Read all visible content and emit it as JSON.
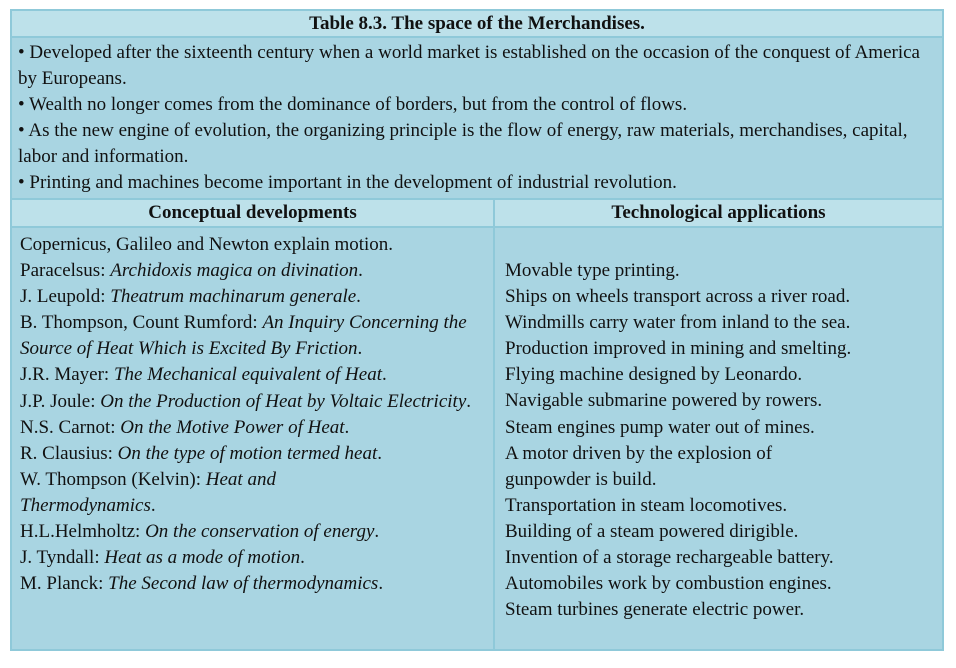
{
  "title": "Table 8.3. The space of the Merchandises.",
  "intro": [
    "• Developed after the sixteenth century when a world market is established on the occasion of the conquest of America by Europeans.",
    "• Wealth no longer comes from the dominance of borders, but from the control of flows.",
    "• As the new engine of evolution, the organizing principle is the flow of energy, raw materials, merchandises, capital, labor and information.",
    "• Printing and machines become important in the development of industrial revolution."
  ],
  "headers": {
    "left": "Conceptual developments",
    "right": "Technological applications"
  },
  "conceptual": [
    {
      "author": "Copernicus, Galileo and Newton explain motion.",
      "work": "",
      "end": ""
    },
    {
      "author": "Paracelsus: ",
      "work": "Archidoxis magica on divination",
      "end": "."
    },
    {
      "author": "J. Leupold: ",
      "work": "Theatrum machinarum generale",
      "end": "."
    },
    {
      "author": "B. Thompson, Count Rumford: ",
      "work": "An Inquiry Concerning the Source of Heat Which is Excited By Friction",
      "end": "."
    },
    {
      "author": "J.R. Mayer: ",
      "work": "The Mechanical equivalent of Heat",
      "end": "."
    },
    {
      "author": "J.P. Joule: ",
      "work": "On the Production of Heat by Voltaic Electricity",
      "end": "."
    },
    {
      "author": "N.S. Carnot: ",
      "work": "On the Motive Power of Heat",
      "end": "."
    },
    {
      "author": "R. Clausius: ",
      "work": "On the type of motion termed heat",
      "end": "."
    },
    {
      "author": "W. Thompson (Kelvin): ",
      "work": "Heat and Thermodynamics",
      "end": "."
    },
    {
      "author": "H.L.Helmholtz: ",
      "work": "On the conservation of energy",
      "end": "."
    },
    {
      "author": "J. Tyndall: ",
      "work": "Heat as a mode of motion",
      "end": "."
    },
    {
      "author": "M. Planck: ",
      "work": "The Second law of thermodynamics",
      "end": "."
    }
  ],
  "technological": [
    "Movable type printing.",
    "Ships on wheels transport across a river road.",
    "Windmills carry water from inland to the sea.",
    "Production improved in mining and smelting.",
    "Flying machine designed by Leonardo.",
    "Navigable submarine powered by rowers.",
    "Steam engines pump water out of mines.",
    "A motor driven by the explosion of gunpowder is build.",
    "Transportation in steam locomotives.",
    "Building of a steam powered dirigible.",
    "Invention of a storage rechargeable battery.",
    "Automobiles work by combustion engines.",
    "Steam turbines generate electric power."
  ]
}
